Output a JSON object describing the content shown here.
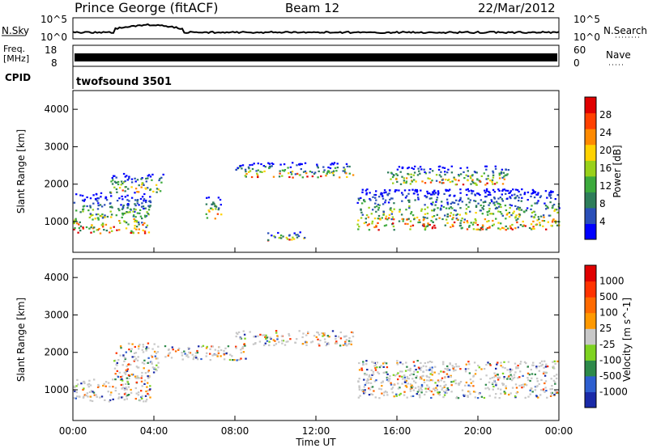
{
  "header": {
    "station": "Prince George (fitACF)",
    "beam": "Beam 12",
    "date": "22/Mar/2012"
  },
  "status_panels": {
    "noise": {
      "left_label": "N.Sky",
      "right_label": "N.Search",
      "ticks_left": [
        "10^5",
        "10^0"
      ],
      "ticks_right": [
        "10^5",
        "10^0"
      ]
    },
    "freq": {
      "left_label_line1": "Freq.",
      "left_label_line2": "[MHz]",
      "ticks_left": [
        "18",
        "8"
      ],
      "right_label": "Nave",
      "ticks_right": [
        "60",
        "0"
      ]
    },
    "cpid": {
      "label": "CPID",
      "program": "twofsound 3501"
    }
  },
  "chart_data": [
    {
      "type": "heatmap",
      "ylabel": "Slant Range [km]",
      "ylim": [
        180,
        4500
      ],
      "y_ticks": [
        "4000",
        "3000",
        "2000",
        "1000"
      ],
      "x_range_hours": [
        0,
        24
      ],
      "colorbar": {
        "label": "Power [dB]",
        "ticks": [
          "28",
          "24",
          "20",
          "16",
          "12",
          "8",
          "4"
        ],
        "colors": [
          "#0000ff",
          "#2a4fb8",
          "#2e7d5a",
          "#3caa3c",
          "#99d11a",
          "#ffd200",
          "#ff8a00",
          "#ff4000",
          "#e00000"
        ]
      },
      "echo_regions": [
        {
          "t": [
            0.0,
            3.8
          ],
          "range": [
            700,
            1800
          ]
        },
        {
          "t": [
            1.8,
            4.5
          ],
          "range": [
            1800,
            2300
          ]
        },
        {
          "t": [
            6.5,
            7.3
          ],
          "range": [
            1100,
            1700
          ]
        },
        {
          "t": [
            8.0,
            13.8
          ],
          "range": [
            2200,
            2600
          ]
        },
        {
          "t": [
            14.0,
            24.0
          ],
          "range": [
            800,
            1900
          ]
        },
        {
          "t": [
            15.5,
            21.5
          ],
          "range": [
            2000,
            2500
          ]
        },
        {
          "t": [
            9.5,
            11.5
          ],
          "range": [
            500,
            750
          ]
        }
      ]
    },
    {
      "type": "heatmap",
      "ylabel": "Slant Range [km]",
      "xlabel": "Time UT",
      "ylim": [
        180,
        4500
      ],
      "y_ticks": [
        "4000",
        "3000",
        "2000",
        "1000"
      ],
      "x_range_hours": [
        0,
        24
      ],
      "x_ticks": [
        "00:00",
        "04:00",
        "08:00",
        "12:00",
        "16:00",
        "20:00",
        "00:00"
      ],
      "colorbar": {
        "label": "Velocity [m s^-1]",
        "ticks": [
          "1000",
          "500",
          "100",
          "25",
          "-25",
          "-100",
          "-500",
          "-1000"
        ],
        "colors": [
          "#1a2aa8",
          "#2e5fd0",
          "#2e8a4a",
          "#7ed321",
          "#c8c8c8",
          "#ff9900",
          "#ff6a00",
          "#ff3300",
          "#e00000"
        ]
      },
      "echo_regions": [
        {
          "t": [
            0.0,
            3.8
          ],
          "range": [
            700,
            1300
          ]
        },
        {
          "t": [
            2.0,
            4.2
          ],
          "range": [
            1300,
            2300
          ]
        },
        {
          "t": [
            4.5,
            8.5
          ],
          "range": [
            1800,
            2200
          ]
        },
        {
          "t": [
            8.0,
            13.8
          ],
          "range": [
            2200,
            2600
          ]
        },
        {
          "t": [
            14.0,
            24.0
          ],
          "range": [
            800,
            1800
          ]
        }
      ]
    }
  ]
}
